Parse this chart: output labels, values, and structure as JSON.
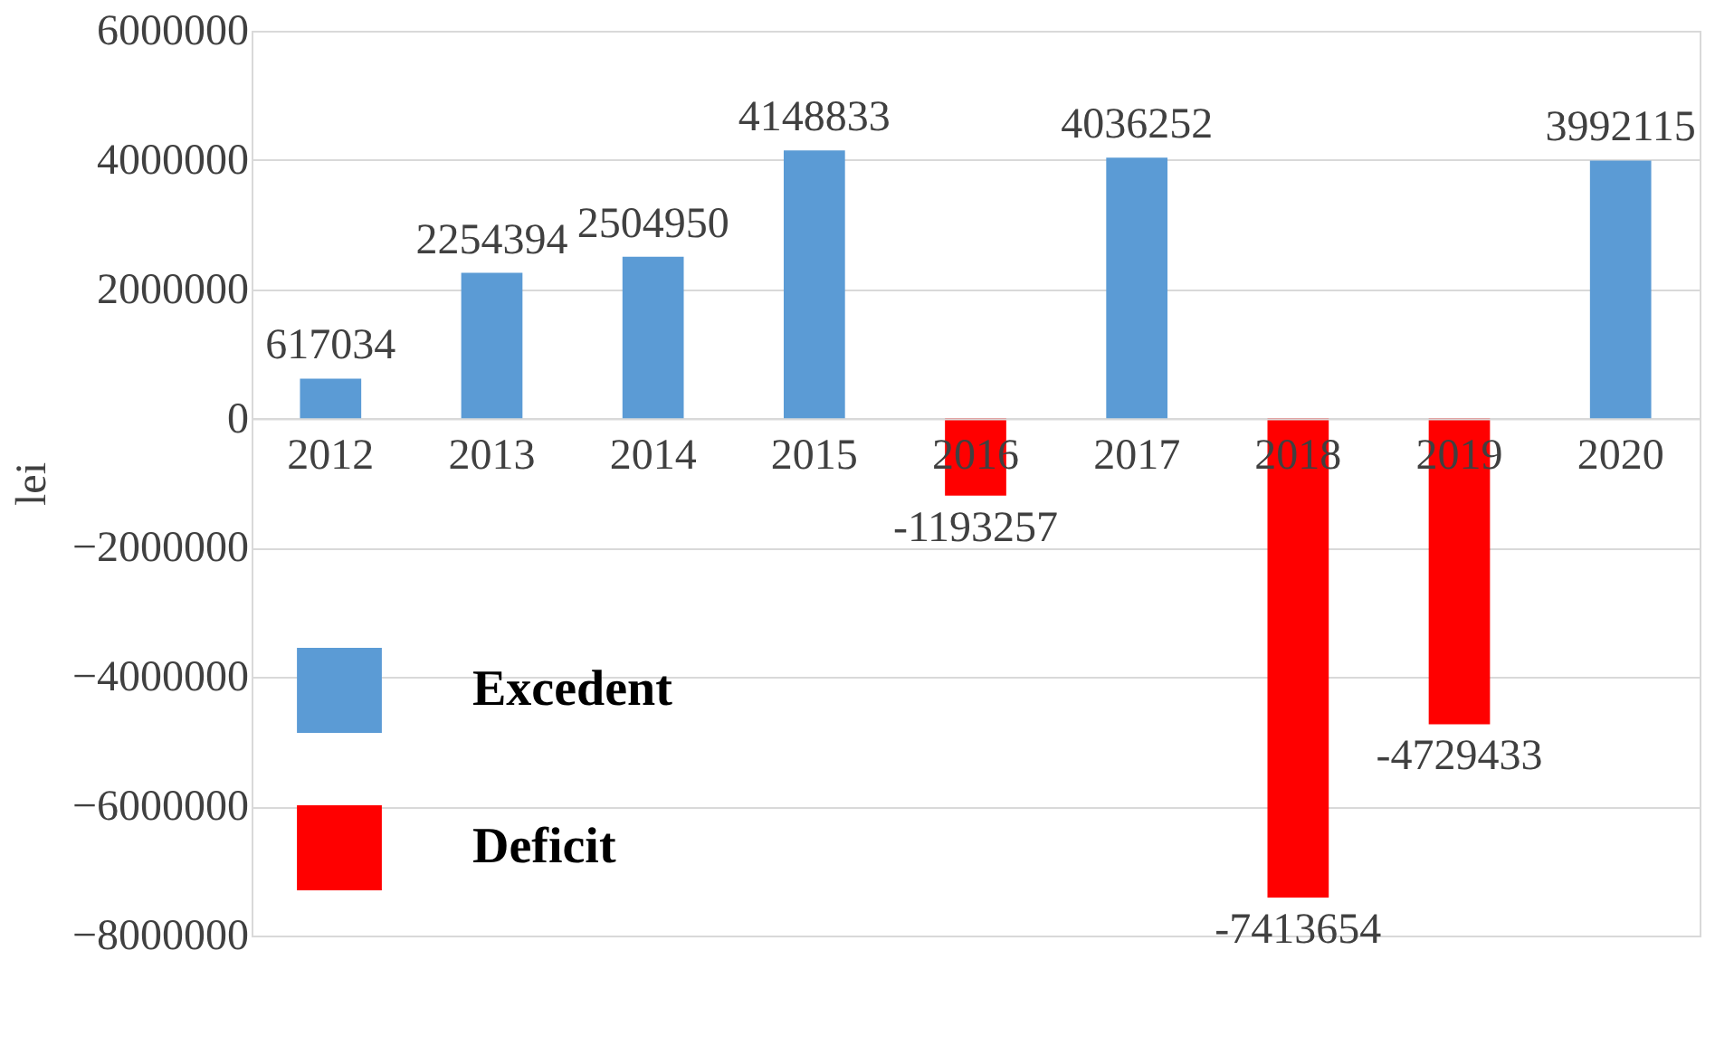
{
  "chart_data": {
    "type": "bar",
    "ylabel": "lei",
    "categories": [
      "2012",
      "2013",
      "2014",
      "2015",
      "2016",
      "2017",
      "2018",
      "2019",
      "2020"
    ],
    "series": [
      {
        "name": "Excedent",
        "color": "#5b9bd5",
        "values": [
          617034,
          2254394,
          2504950,
          4148833,
          null,
          4036252,
          null,
          null,
          3992115
        ]
      },
      {
        "name": "Deficit",
        "color": "#ff0000",
        "values": [
          null,
          null,
          null,
          null,
          -1193257,
          null,
          -7413654,
          -4729433,
          null
        ]
      }
    ],
    "ylim": [
      -8000000,
      6000000
    ],
    "yticks": [
      -8000000,
      -6000000,
      -4000000,
      -2000000,
      0,
      2000000,
      4000000,
      6000000
    ],
    "grid": "y",
    "legend": "bottom left",
    "data_labels": true
  }
}
